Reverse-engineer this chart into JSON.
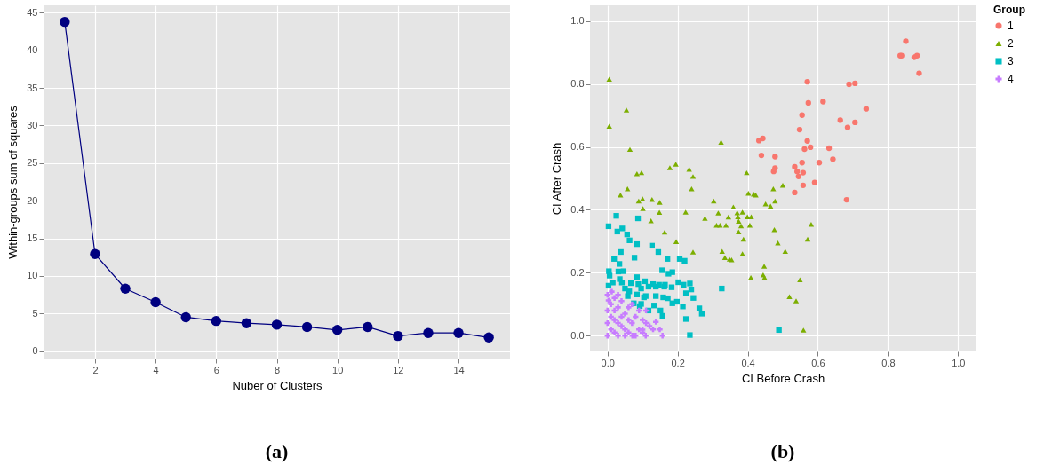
{
  "chart_data": [
    {
      "type": "line",
      "xlabel": "Nuber of Clusters",
      "ylabel": "Within-groups sum of squares",
      "annotations": [
        "(a)"
      ],
      "x": [
        1,
        2,
        3,
        4,
        5,
        6,
        7,
        8,
        9,
        10,
        11,
        12,
        13,
        14,
        15
      ],
      "series": [
        {
          "color": "#000080",
          "values": [
            43.8,
            12.9,
            8.3,
            6.5,
            4.5,
            4.0,
            3.7,
            3.5,
            3.2,
            2.8,
            3.2,
            2.0,
            2.4,
            2.4,
            1.8
          ]
        }
      ],
      "xlim": [
        0.3,
        15.7
      ],
      "xticks": [
        2,
        4,
        6,
        8,
        10,
        12,
        14
      ],
      "ylim": [
        -1,
        46
      ],
      "yticks": [
        0,
        5,
        10,
        15,
        20,
        25,
        30,
        35,
        40,
        45
      ],
      "grid": true,
      "marker": "circle"
    },
    {
      "type": "scatter",
      "xlabel": "CI Before Crash",
      "ylabel": "CI After Crash",
      "legend_title": "Group",
      "annotations": [
        "(b)"
      ],
      "series": [
        {
          "name": "1",
          "color": "#f8766d",
          "marker": "circle",
          "x": [
            0.851,
            0.835,
            0.839,
            0.875,
            0.883,
            0.889,
            0.57,
            0.689,
            0.706,
            0.573,
            0.615,
            0.738,
            0.555,
            0.664,
            0.685,
            0.706,
            0.548,
            0.432,
            0.443,
            0.57,
            0.562,
            0.579,
            0.632,
            0.439,
            0.478,
            0.643,
            0.555,
            0.604,
            0.534,
            0.478,
            0.474,
            0.541,
            0.558,
            0.545,
            0.558,
            0.591,
            0.534,
            0.682
          ],
          "values": [
            0.936,
            0.89,
            0.89,
            0.885,
            0.89,
            0.834,
            0.807,
            0.799,
            0.802,
            0.74,
            0.744,
            0.721,
            0.701,
            0.685,
            0.662,
            0.678,
            0.655,
            0.62,
            0.627,
            0.619,
            0.593,
            0.599,
            0.596,
            0.573,
            0.569,
            0.561,
            0.55,
            0.55,
            0.537,
            0.533,
            0.522,
            0.522,
            0.518,
            0.506,
            0.478,
            0.487,
            0.455,
            0.432
          ]
        },
        {
          "name": "2",
          "color": "#7cae00",
          "marker": "triangle",
          "x": [
            0.005,
            0.054,
            0.005,
            0.064,
            0.324,
            0.084,
            0.097,
            0.178,
            0.195,
            0.233,
            0.244,
            0.397,
            0.057,
            0.037,
            0.24,
            0.089,
            0.1,
            0.127,
            0.149,
            0.101,
            0.148,
            0.124,
            0.223,
            0.163,
            0.196,
            0.244,
            0.278,
            0.303,
            0.316,
            0.311,
            0.321,
            0.338,
            0.345,
            0.359,
            0.37,
            0.385,
            0.372,
            0.374,
            0.381,
            0.374,
            0.388,
            0.399,
            0.41,
            0.406,
            0.402,
            0.417,
            0.423,
            0.451,
            0.465,
            0.478,
            0.473,
            0.5,
            0.476,
            0.581,
            0.571,
            0.486,
            0.507,
            0.327,
            0.335,
            0.348,
            0.354,
            0.385,
            0.447,
            0.444,
            0.448,
            0.409,
            0.549,
            0.519,
            0.538,
            0.559
          ],
          "values": [
            0.815,
            0.717,
            0.666,
            0.592,
            0.615,
            0.515,
            0.518,
            0.534,
            0.545,
            0.529,
            0.506,
            0.518,
            0.467,
            0.447,
            0.467,
            0.428,
            0.435,
            0.433,
            0.424,
            0.404,
            0.392,
            0.365,
            0.393,
            0.329,
            0.299,
            0.266,
            0.373,
            0.428,
            0.39,
            0.351,
            0.351,
            0.351,
            0.377,
            0.409,
            0.391,
            0.393,
            0.378,
            0.364,
            0.349,
            0.33,
            0.307,
            0.378,
            0.378,
            0.351,
            0.453,
            0.45,
            0.447,
            0.419,
            0.412,
            0.428,
            0.467,
            0.478,
            0.337,
            0.354,
            0.307,
            0.295,
            0.268,
            0.268,
            0.248,
            0.243,
            0.241,
            0.26,
            0.221,
            0.193,
            0.185,
            0.185,
            0.178,
            0.124,
            0.111,
            0.018
          ]
        },
        {
          "name": "3",
          "color": "#00bfc4",
          "marker": "square",
          "x": [
            0.025,
            0.003,
            0.087,
            0.042,
            0.028,
            0.056,
            0.063,
            0.084,
            0.127,
            0.145,
            0.038,
            0.077,
            0.019,
            0.034,
            0.171,
            0.206,
            0.22,
            0.004,
            0.006,
            0.031,
            0.046,
            0.035,
            0.015,
            0.003,
            0.084,
            0.156,
            0.185,
            0.174,
            0.067,
            0.088,
            0.107,
            0.13,
            0.147,
            0.164,
            0.202,
            0.235,
            0.05,
            0.096,
            0.117,
            0.138,
            0.162,
            0.183,
            0.217,
            0.239,
            0.058,
            0.084,
            0.109,
            0.138,
            0.159,
            0.172,
            0.224,
            0.245,
            0.326,
            0.075,
            0.096,
            0.133,
            0.151,
            0.185,
            0.198,
            0.215,
            0.262,
            0.269,
            0.117,
            0.157,
            0.224,
            0.235,
            0.489,
            0.092,
            0.104,
            0.062,
            0.041
          ],
          "values": [
            0.381,
            0.348,
            0.373,
            0.341,
            0.331,
            0.322,
            0.303,
            0.291,
            0.286,
            0.266,
            0.266,
            0.248,
            0.244,
            0.228,
            0.244,
            0.244,
            0.238,
            0.205,
            0.191,
            0.204,
            0.205,
            0.18,
            0.169,
            0.159,
            0.186,
            0.208,
            0.202,
            0.197,
            0.167,
            0.164,
            0.173,
            0.164,
            0.162,
            0.162,
            0.17,
            0.166,
            0.15,
            0.15,
            0.156,
            0.156,
            0.156,
            0.154,
            0.162,
            0.147,
            0.126,
            0.131,
            0.126,
            0.126,
            0.122,
            0.119,
            0.135,
            0.12,
            0.15,
            0.103,
            0.101,
            0.096,
            0.08,
            0.103,
            0.108,
            0.093,
            0.087,
            0.07,
            0.08,
            0.063,
            0.053,
            0.002,
            0.018,
            0.094,
            0.122,
            0.141,
            0.169
          ]
        },
        {
          "name": "4",
          "color": "#c77cff",
          "marker": "cross",
          "x": [
            0.0,
            0.01,
            0.02,
            0.0,
            0.03,
            0.04,
            0.05,
            0.01,
            0.06,
            0.07,
            0.08,
            0.02,
            0.09,
            0.1,
            0.11,
            0.03,
            0.04,
            0.05,
            0.06,
            0.07,
            0.08,
            0.09,
            0.12,
            0.0,
            0.01,
            0.02,
            0.03,
            0.04,
            0.05,
            0.06,
            0.02,
            0.03,
            0.1,
            0.11,
            0.13,
            0.0,
            0.012,
            0.003,
            0.109,
            0.157,
            0.149,
            0.1,
            0.138,
            0.071
          ],
          "values": [
            0.0,
            0.02,
            0.05,
            0.08,
            0.0,
            0.03,
            0.07,
            0.1,
            0.01,
            0.04,
            0.06,
            0.12,
            0.02,
            0.05,
            0.08,
            0.09,
            0.11,
            0.0,
            0.09,
            0.1,
            0.0,
            0.08,
            0.03,
            0.04,
            0.06,
            0.01,
            0.04,
            0.06,
            0.02,
            0.05,
            0.08,
            0.13,
            0.01,
            0.04,
            0.02,
            0.13,
            0.14,
            0.112,
            0.0,
            0.0,
            0.02,
            0.019,
            0.044,
            0.0
          ]
        }
      ],
      "xlim": [
        -0.05,
        1.05
      ],
      "xticks": [
        {
          "value": 0,
          "label": "0.0"
        },
        {
          "value": 0.2,
          "label": "0.2"
        },
        {
          "value": 0.4,
          "label": "0.4"
        },
        {
          "value": 0.6,
          "label": "0.6"
        },
        {
          "value": 0.8,
          "label": "0.8"
        },
        {
          "value": 1,
          "label": "1.0"
        }
      ],
      "ylim": [
        -0.05,
        1.05
      ],
      "yticks": [
        {
          "value": 0,
          "label": "0.0"
        },
        {
          "value": 0.2,
          "label": "0.2"
        },
        {
          "value": 0.4,
          "label": "0.4"
        },
        {
          "value": 0.6,
          "label": "0.6"
        },
        {
          "value": 0.8,
          "label": "0.8"
        },
        {
          "value": 1,
          "label": "1.0"
        }
      ],
      "grid": true,
      "legend": "right"
    }
  ]
}
